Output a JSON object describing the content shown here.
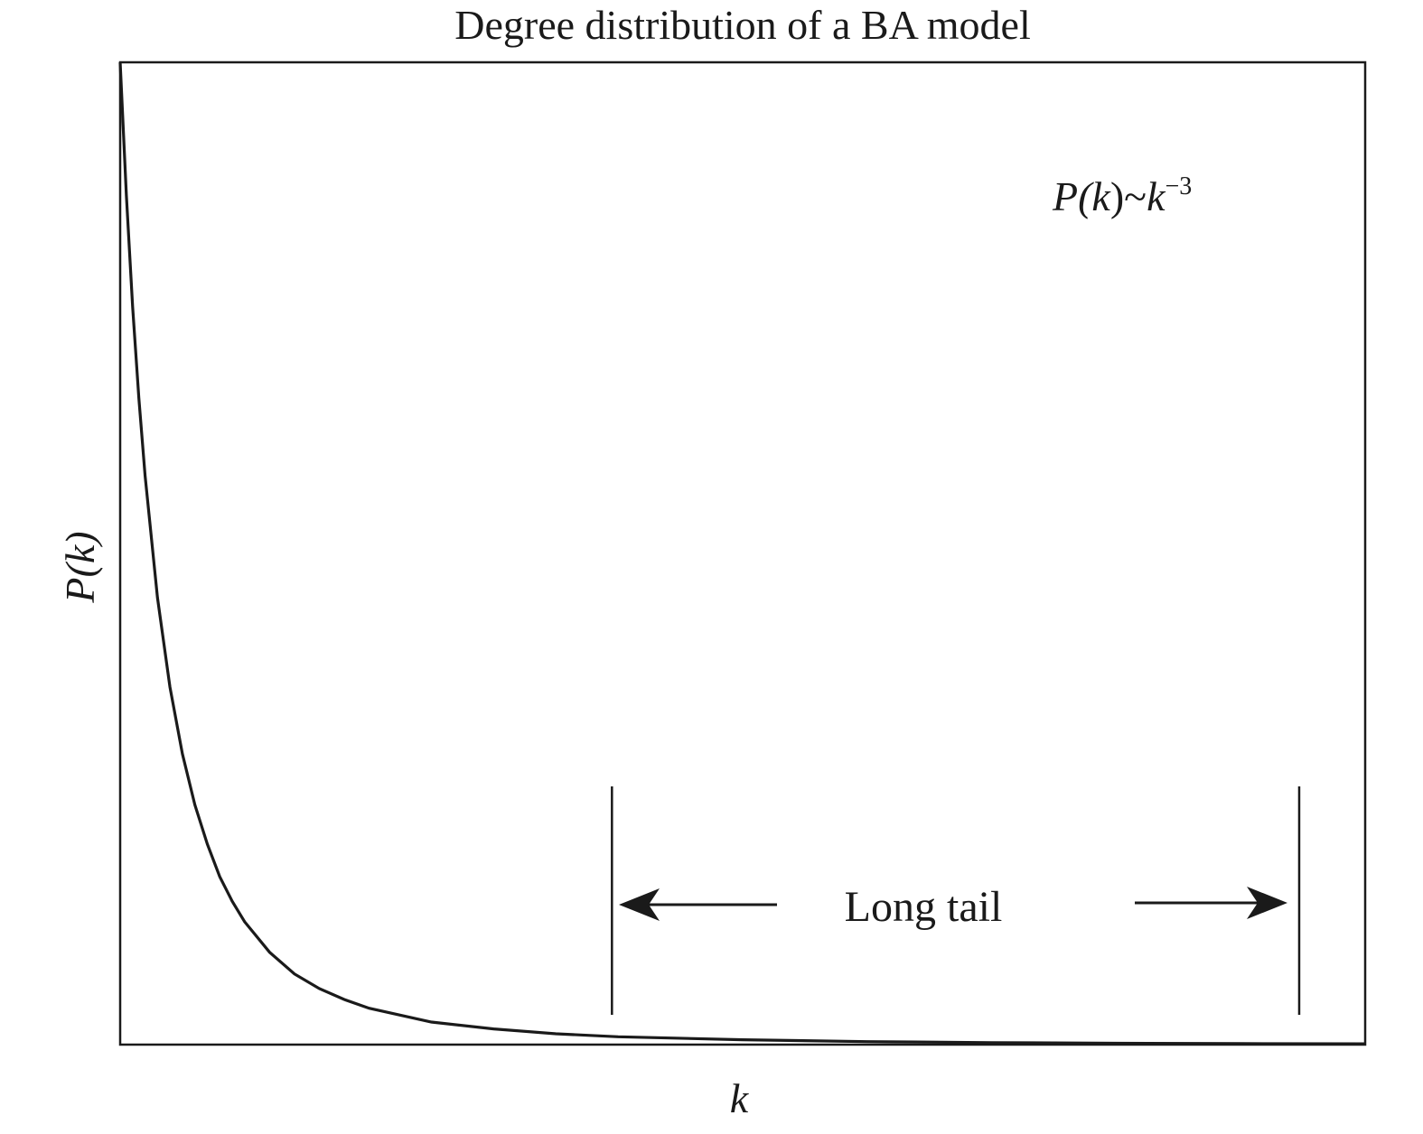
{
  "chart_data": {
    "type": "line",
    "title": "Degree distribution of a BA model",
    "xlabel": "k",
    "ylabel": "P(k)",
    "ticks": false,
    "grid": false,
    "legend": "none",
    "series": [
      {
        "formula": "P(k) ~ k^-3",
        "x": [
          1.0,
          1.05,
          1.1,
          1.15,
          1.2,
          1.3,
          1.4,
          1.5,
          1.6,
          1.7,
          1.8,
          1.9,
          2.0,
          2.2,
          2.4,
          2.6,
          2.8,
          3.0,
          3.5,
          4.0,
          4.5,
          5.0,
          6.0,
          7.0,
          8.0,
          9.0,
          10.0,
          11.0
        ],
        "y": [
          1.0,
          0.864,
          0.751,
          0.658,
          0.579,
          0.455,
          0.364,
          0.296,
          0.244,
          0.204,
          0.171,
          0.146,
          0.125,
          0.094,
          0.072,
          0.057,
          0.046,
          0.037,
          0.023,
          0.016,
          0.011,
          0.008,
          0.005,
          0.003,
          0.002,
          0.0014,
          0.001,
          0.0008
        ]
      }
    ],
    "xlim": [
      1.0,
      11.0
    ],
    "ylim": [
      0.0,
      1.0
    ],
    "annotations": {
      "formula": {
        "base": "P(",
        "var": "k",
        "close": ")~",
        "var2": "k",
        "exponent": "−3"
      },
      "long_tail": {
        "label": "Long tail",
        "x_start": 4.95,
        "x_end": 10.47
      }
    },
    "colors": {
      "line": "#1a1a1a",
      "frame": "#1a1a1a"
    }
  }
}
